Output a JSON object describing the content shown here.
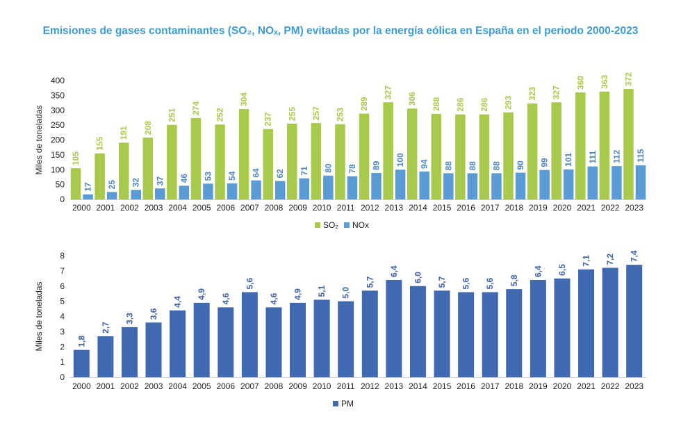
{
  "title": "Emisiones de gases contaminantes (SO₂, NOₓ, PM) evitadas por la energía eólica en España en el periodo 2000-2023",
  "colors": {
    "so2": "#a9c94a",
    "nox": "#5b9bd5",
    "pm": "#4169b0",
    "so2_label": "#a9c94a",
    "nox_label": "#4a86c8",
    "pm_label": "#3b5fa6"
  },
  "chart_data": [
    {
      "type": "bar",
      "ylabel": "Miles de toneladas",
      "ylim": [
        0,
        400
      ],
      "yticks": [
        0,
        50,
        100,
        150,
        200,
        250,
        300,
        350,
        400
      ],
      "categories": [
        "2000",
        "2001",
        "2002",
        "2003",
        "2004",
        "2005",
        "2006",
        "2007",
        "2008",
        "2009",
        "2010",
        "2011",
        "2012",
        "2013",
        "2014",
        "2015",
        "2016",
        "2017",
        "2018",
        "2019",
        "2020",
        "2021",
        "2022",
        "2023"
      ],
      "series": [
        {
          "name": "SO₂",
          "values": [
            105,
            155,
            191,
            208,
            251,
            274,
            252,
            304,
            237,
            255,
            257,
            253,
            289,
            327,
            306,
            288,
            286,
            286,
            293,
            323,
            327,
            360,
            363,
            372
          ]
        },
        {
          "name": "NOx",
          "values": [
            17,
            25,
            32,
            37,
            46,
            53,
            54,
            64,
            62,
            71,
            80,
            78,
            89,
            100,
            94,
            88,
            88,
            88,
            90,
            99,
            101,
            111,
            112,
            115
          ]
        }
      ],
      "legend": "bottom-center"
    },
    {
      "type": "bar",
      "ylabel": "Miles de toneladas",
      "ylim": [
        0,
        8
      ],
      "yticks": [
        0,
        1,
        2,
        3,
        4,
        5,
        6,
        7,
        8
      ],
      "categories": [
        "2000",
        "2001",
        "2002",
        "2003",
        "2004",
        "2005",
        "2006",
        "2007",
        "2008",
        "2009",
        "2010",
        "2011",
        "2012",
        "2013",
        "2014",
        "2015",
        "2016",
        "2017",
        "2018",
        "2019",
        "2020",
        "2021",
        "2022",
        "2023"
      ],
      "series": [
        {
          "name": "PM",
          "values": [
            1.8,
            2.7,
            3.3,
            3.6,
            4.4,
            4.9,
            4.6,
            5.6,
            4.6,
            4.9,
            5.1,
            5.0,
            5.7,
            6.4,
            6.0,
            5.7,
            5.6,
            5.6,
            5.8,
            6.4,
            6.5,
            7.1,
            7.2,
            7.4
          ]
        }
      ],
      "labels": [
        "1,8",
        "2,7",
        "3,3",
        "3,6",
        "4,4",
        "4,9",
        "4,6",
        "5,6",
        "4,6",
        "4,9",
        "5,1",
        "5,0",
        "5,7",
        "6,4",
        "6,0",
        "5,7",
        "5,6",
        "5,6",
        "5,8",
        "6,4",
        "6,5",
        "7,1",
        "7,2",
        "7,4"
      ],
      "legend": "bottom-center"
    }
  ]
}
